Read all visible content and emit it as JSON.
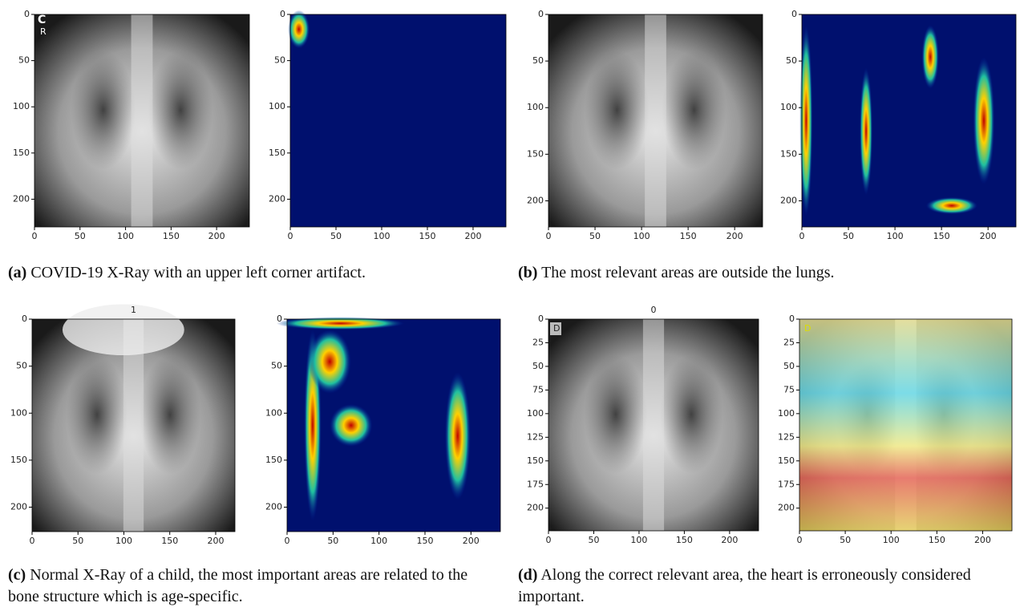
{
  "figure": {
    "panels": [
      {
        "label": "(a)",
        "caption": "COVID-19 X-Ray with an upper left corner artifact.",
        "images": [
          {
            "xlim": [
              0,
              236
            ],
            "ylim": [
              0,
              230
            ],
            "xticks": [
              0,
              50,
              100,
              150,
              200
            ],
            "yticks": [
              0,
              50,
              100,
              150,
              200
            ],
            "overlay_text": [
              "C",
              "R"
            ]
          },
          {
            "xlim": [
              0,
              236
            ],
            "ylim": [
              0,
              230
            ],
            "xticks": [
              0,
              50,
              100,
              150,
              200
            ],
            "yticks": [
              0,
              50,
              100,
              150,
              200
            ]
          }
        ]
      },
      {
        "label": "(b)",
        "caption": "The most relevant areas are outside the lungs.",
        "images": [
          {
            "xlim": [
              0,
              230
            ],
            "ylim": [
              0,
              228
            ],
            "xticks": [
              0,
              50,
              100,
              150,
              200
            ],
            "yticks": [
              0,
              50,
              100,
              150,
              200
            ]
          },
          {
            "xlim": [
              0,
              230
            ],
            "ylim": [
              0,
              228
            ],
            "xticks": [
              0,
              50,
              100,
              150,
              200
            ],
            "yticks": [
              0,
              50,
              100,
              150,
              200
            ]
          }
        ]
      },
      {
        "label": "(c)",
        "caption": "Normal X-Ray of a child, the most important areas are related to the bone structure which is age-specific.",
        "images": [
          {
            "title": "1",
            "xlim": [
              0,
              221
            ],
            "ylim": [
              0,
              226
            ],
            "xticks": [
              0,
              50,
              100,
              150,
              200
            ],
            "yticks": [
              0,
              50,
              100,
              150,
              200
            ]
          },
          {
            "xlim": [
              0,
              232
            ],
            "ylim": [
              0,
              226
            ],
            "xticks": [
              0,
              50,
              100,
              150,
              200
            ],
            "yticks": [
              0,
              50,
              100,
              150,
              200
            ]
          }
        ]
      },
      {
        "label": "(d)",
        "caption": "Along the correct relevant area, the heart is erroneously considered important.",
        "images": [
          {
            "title": "0",
            "xlim": [
              0,
              232
            ],
            "ylim": [
              0,
              224
            ],
            "xticks": [
              0,
              50,
              100,
              150,
              200
            ],
            "yticks": [
              0,
              25,
              50,
              75,
              100,
              125,
              150,
              175,
              200
            ],
            "overlay_text": [
              "D"
            ]
          },
          {
            "xlim": [
              0,
              232
            ],
            "ylim": [
              0,
              224
            ],
            "xticks": [
              0,
              50,
              100,
              150,
              200
            ],
            "yticks": [
              0,
              25,
              50,
              75,
              100,
              125,
              150,
              175,
              200
            ],
            "overlay_text": [
              "D"
            ]
          }
        ]
      }
    ]
  }
}
